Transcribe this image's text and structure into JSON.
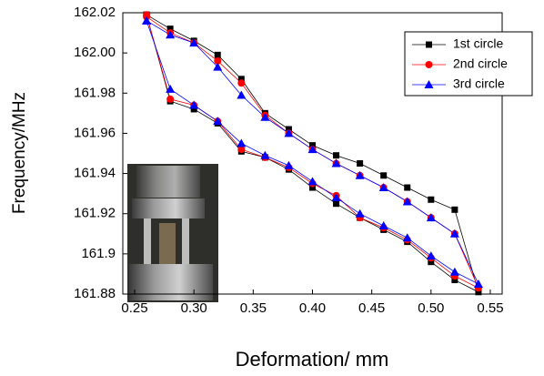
{
  "chart_data": {
    "type": "line",
    "x_label": "Deformation/ mm",
    "y_label": "Frequency/MHz",
    "x": [
      0.26,
      0.28,
      0.3,
      0.32,
      0.34,
      0.36,
      0.38,
      0.4,
      0.42,
      0.44,
      0.46,
      0.48,
      0.5,
      0.52,
      0.54,
      0.52,
      0.5,
      0.48,
      0.46,
      0.44,
      0.42,
      0.4,
      0.38,
      0.36,
      0.34,
      0.32,
      0.3,
      0.28,
      0.26
    ],
    "series": [
      {
        "name": "1st circle",
        "color": "#000000",
        "marker": "square",
        "values": [
          162.019,
          161.976,
          161.972,
          161.965,
          161.951,
          161.948,
          161.942,
          161.933,
          161.925,
          161.918,
          161.912,
          161.906,
          161.896,
          161.887,
          161.881,
          161.922,
          161.927,
          161.933,
          161.939,
          161.945,
          161.949,
          161.954,
          161.962,
          161.97,
          161.987,
          161.999,
          162.006,
          162.012,
          162.019
        ]
      },
      {
        "name": "2nd circle",
        "color": "#ff0000",
        "marker": "circle",
        "values": [
          162.019,
          161.977,
          161.974,
          161.966,
          161.952,
          161.948,
          161.943,
          161.935,
          161.929,
          161.918,
          161.913,
          161.907,
          161.898,
          161.889,
          161.883,
          161.91,
          161.918,
          161.926,
          161.933,
          161.939,
          161.945,
          161.952,
          161.96,
          161.969,
          161.985,
          161.996,
          162.005,
          162.01,
          162.018
        ]
      },
      {
        "name": "3rd circle",
        "color": "#0000ff",
        "marker": "triangle",
        "values": [
          162.016,
          161.982,
          161.974,
          161.966,
          161.955,
          161.949,
          161.944,
          161.936,
          161.928,
          161.92,
          161.914,
          161.908,
          161.899,
          161.891,
          161.885,
          161.91,
          161.918,
          161.926,
          161.933,
          161.939,
          161.945,
          161.952,
          161.96,
          161.968,
          161.979,
          161.993,
          162.005,
          162.009,
          162.016
        ]
      }
    ],
    "xlim": [
      0.24,
      0.56
    ],
    "xticks": [
      0.25,
      {
        "value": 0.3,
        "label": "0.30"
      },
      0.35,
      {
        "value": 0.4,
        "label": "0.40"
      },
      0.45,
      {
        "value": 0.5,
        "label": "0.50"
      },
      0.55
    ],
    "ylim": [
      161.88,
      162.02
    ],
    "yticks": [
      161.88,
      161.9,
      161.92,
      161.94,
      161.96,
      161.98,
      {
        "value": 162.0,
        "label": "162.00"
      },
      162.02
    ],
    "legend": "top-right"
  }
}
